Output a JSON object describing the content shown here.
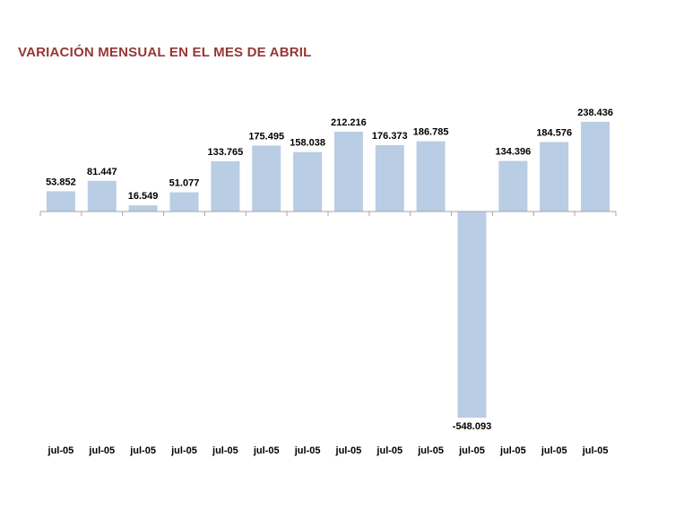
{
  "title": "VARIACIÓN MENSUAL EN EL MES DE ABRIL",
  "colors": {
    "title": "#953735",
    "bar": "#B9CDE5",
    "axis": "#A6A6A6"
  },
  "chart_data": {
    "type": "bar",
    "title": "VARIACIÓN MENSUAL EN EL MES DE ABRIL",
    "xlabel": "",
    "ylabel": "",
    "categories": [
      "jul-05",
      "jul-05",
      "jul-05",
      "jul-05",
      "jul-05",
      "jul-05",
      "jul-05",
      "jul-05",
      "jul-05",
      "jul-05",
      "jul-05",
      "jul-05",
      "jul-05",
      "jul-05"
    ],
    "values": [
      53852,
      81447,
      16549,
      51077,
      133765,
      175495,
      158038,
      212216,
      176373,
      186785,
      -548093,
      134396,
      184576,
      238436
    ],
    "value_labels": [
      "53.852",
      "81.447",
      "16.549",
      "51.077",
      "133.765",
      "175.495",
      "158.038",
      "212.216",
      "176.373",
      "186.785",
      "-548.093",
      "134.396",
      "184.576",
      "238.436"
    ],
    "ylim": [
      -550000,
      250000
    ],
    "grid": false,
    "legend": "none"
  }
}
